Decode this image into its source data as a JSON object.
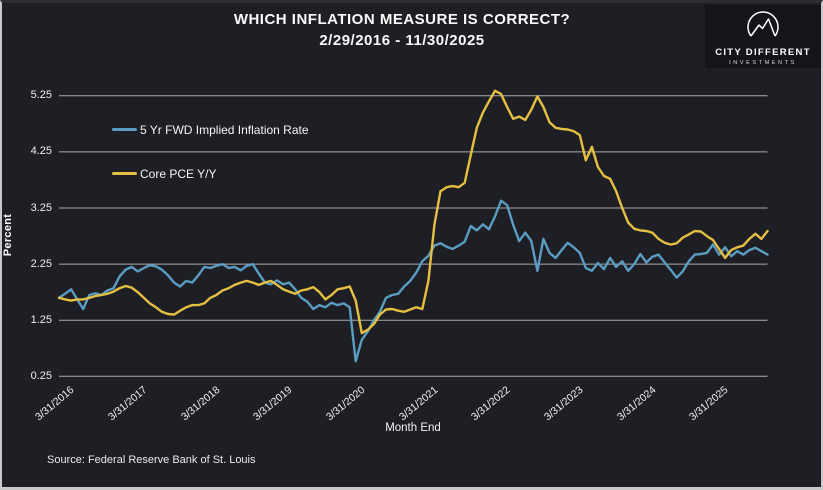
{
  "title": {
    "line1": "WHICH INFLATION MEASURE IS CORRECT?",
    "line2": "2/29/2016 - 11/30/2025"
  },
  "logo": {
    "name": "CITY DIFFERENT",
    "subtitle": "INVESTMENTS"
  },
  "source": "Source: Federal Reserve Bank of St. Louis",
  "colors": {
    "background": "#1e1f24",
    "grid": "#c3c3c3",
    "blue_series": "#5b9cc3",
    "yellow_series": "#e5bf42",
    "text": "#f2f2f2",
    "logo_background": "#141519"
  },
  "chart_data": {
    "type": "line",
    "title": "WHICH INFLATION MEASURE IS CORRECT? 2/29/2016 - 11/30/2025",
    "xlabel": "Month End",
    "ylabel": "Percent",
    "frequency": "monthly",
    "start_month": "2016-02",
    "end_month": "2025-11",
    "grid": "horizontal",
    "legend_position": "upper-left-inside",
    "y_ticks": [
      0.25,
      1.25,
      2.25,
      3.25,
      4.25,
      5.25
    ],
    "ylim": [
      0.1,
      5.5
    ],
    "x_tick_labels": [
      "3/31/2016",
      "3/31/2017",
      "3/31/2018",
      "3/31/2019",
      "3/31/2020",
      "3/31/2021",
      "3/31/2022",
      "3/31/2023",
      "3/31/2024",
      "3/31/2025"
    ],
    "x_tick_month_index": [
      1,
      13,
      25,
      37,
      49,
      61,
      73,
      85,
      97,
      109
    ],
    "series": [
      {
        "name": "5 Yr FWD Implied Inflation Rate",
        "color": "#5b9cc3",
        "values": [
          1.65,
          1.72,
          1.8,
          1.62,
          1.45,
          1.7,
          1.73,
          1.7,
          1.78,
          1.82,
          2.03,
          2.15,
          2.2,
          2.12,
          2.18,
          2.23,
          2.21,
          2.15,
          2.05,
          1.92,
          1.85,
          1.95,
          1.92,
          2.05,
          2.2,
          2.18,
          2.22,
          2.25,
          2.18,
          2.2,
          2.14,
          2.22,
          2.25,
          2.08,
          1.92,
          1.89,
          1.96,
          1.89,
          1.92,
          1.8,
          1.65,
          1.58,
          1.45,
          1.52,
          1.48,
          1.56,
          1.52,
          1.55,
          1.48,
          0.52,
          0.9,
          1.05,
          1.25,
          1.4,
          1.65,
          1.7,
          1.72,
          1.85,
          1.95,
          2.1,
          2.3,
          2.4,
          2.58,
          2.62,
          2.56,
          2.52,
          2.58,
          2.65,
          2.93,
          2.85,
          2.96,
          2.87,
          3.1,
          3.38,
          3.3,
          2.95,
          2.66,
          2.81,
          2.66,
          2.13,
          2.7,
          2.45,
          2.36,
          2.5,
          2.63,
          2.55,
          2.45,
          2.18,
          2.13,
          2.27,
          2.16,
          2.36,
          2.2,
          2.3,
          2.13,
          2.25,
          2.43,
          2.28,
          2.38,
          2.42,
          2.28,
          2.15,
          2.01,
          2.12,
          2.3,
          2.42,
          2.43,
          2.45,
          2.6,
          2.42,
          2.55,
          2.39,
          2.48,
          2.42,
          2.5,
          2.54,
          2.48,
          2.42
        ]
      },
      {
        "name": "Core PCE Y/Y",
        "color": "#e5bf42",
        "values": [
          1.65,
          1.62,
          1.6,
          1.62,
          1.62,
          1.65,
          1.68,
          1.7,
          1.72,
          1.76,
          1.82,
          1.86,
          1.83,
          1.75,
          1.65,
          1.55,
          1.48,
          1.4,
          1.36,
          1.35,
          1.42,
          1.48,
          1.52,
          1.52,
          1.55,
          1.65,
          1.7,
          1.78,
          1.82,
          1.88,
          1.92,
          1.95,
          1.92,
          1.88,
          1.92,
          1.95,
          1.88,
          1.8,
          1.76,
          1.72,
          1.78,
          1.8,
          1.84,
          1.75,
          1.62,
          1.7,
          1.8,
          1.82,
          1.85,
          1.6,
          1.02,
          1.08,
          1.18,
          1.35,
          1.44,
          1.45,
          1.42,
          1.4,
          1.44,
          1.48,
          1.45,
          1.95,
          2.95,
          3.55,
          3.62,
          3.64,
          3.62,
          3.7,
          4.2,
          4.68,
          4.95,
          5.15,
          5.34,
          5.28,
          5.05,
          4.84,
          4.88,
          4.82,
          5.0,
          5.24,
          5.05,
          4.78,
          4.68,
          4.66,
          4.65,
          4.62,
          4.55,
          4.1,
          4.34,
          3.98,
          3.82,
          3.77,
          3.55,
          3.25,
          2.99,
          2.88,
          2.85,
          2.84,
          2.81,
          2.7,
          2.63,
          2.6,
          2.62,
          2.72,
          2.78,
          2.84,
          2.83,
          2.75,
          2.68,
          2.52,
          2.36,
          2.5,
          2.55,
          2.58,
          2.7,
          2.79,
          2.7,
          2.84
        ]
      }
    ]
  }
}
